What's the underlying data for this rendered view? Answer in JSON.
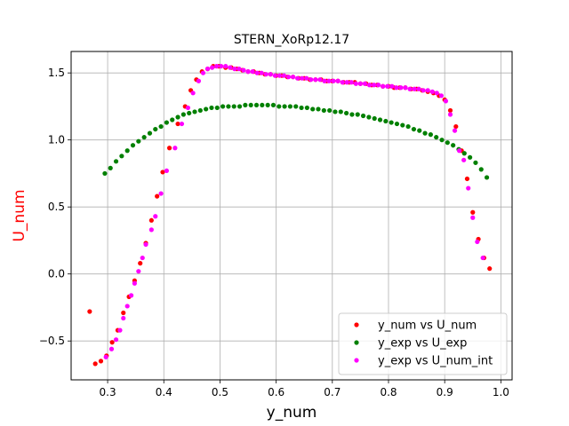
{
  "chart_data": {
    "type": "scatter",
    "title": "STERN_XoRp12.17",
    "xlabel": "y_num",
    "ylabel": "U_num",
    "xlabel_color": "#000000",
    "ylabel_color": "#ff0000",
    "xlim": [
      0.235,
      1.02
    ],
    "ylim": [
      -0.79,
      1.66
    ],
    "xticks": [
      0.3,
      0.4,
      0.5,
      0.6,
      0.7,
      0.8,
      0.9,
      1.0
    ],
    "xtick_labels": [
      "0.3",
      "0.4",
      "0.5",
      "0.6",
      "0.7",
      "0.8",
      "0.9",
      "1.0"
    ],
    "yticks": [
      -0.5,
      0.0,
      0.5,
      1.0,
      1.5
    ],
    "ytick_labels": [
      "−0.5",
      "0.0",
      "0.5",
      "1.0",
      "1.5"
    ],
    "grid": true,
    "legend_position": "lower-right",
    "series": [
      {
        "name": "y_num vs U_num",
        "color": "#ff0000",
        "points": [
          [
            0.268,
            -0.28
          ],
          [
            0.278,
            -0.67
          ],
          [
            0.288,
            -0.65
          ],
          [
            0.298,
            -0.61
          ],
          [
            0.308,
            -0.51
          ],
          [
            0.318,
            -0.42
          ],
          [
            0.328,
            -0.29
          ],
          [
            0.338,
            -0.17
          ],
          [
            0.348,
            -0.05
          ],
          [
            0.358,
            0.08
          ],
          [
            0.368,
            0.23
          ],
          [
            0.378,
            0.4
          ],
          [
            0.388,
            0.58
          ],
          [
            0.398,
            0.76
          ],
          [
            0.41,
            0.94
          ],
          [
            0.425,
            1.12
          ],
          [
            0.438,
            1.25
          ],
          [
            0.448,
            1.37
          ],
          [
            0.458,
            1.45
          ],
          [
            0.468,
            1.51
          ],
          [
            0.478,
            1.53
          ],
          [
            0.488,
            1.55
          ],
          [
            0.498,
            1.55
          ],
          [
            0.51,
            1.54
          ],
          [
            0.52,
            1.54
          ],
          [
            0.53,
            1.53
          ],
          [
            0.54,
            1.52
          ],
          [
            0.55,
            1.51
          ],
          [
            0.56,
            1.51
          ],
          [
            0.57,
            1.5
          ],
          [
            0.58,
            1.49
          ],
          [
            0.59,
            1.49
          ],
          [
            0.6,
            1.48
          ],
          [
            0.61,
            1.48
          ],
          [
            0.62,
            1.47
          ],
          [
            0.63,
            1.47
          ],
          [
            0.64,
            1.46
          ],
          [
            0.65,
            1.46
          ],
          [
            0.66,
            1.45
          ],
          [
            0.67,
            1.45
          ],
          [
            0.68,
            1.45
          ],
          [
            0.69,
            1.44
          ],
          [
            0.7,
            1.44
          ],
          [
            0.71,
            1.44
          ],
          [
            0.72,
            1.43
          ],
          [
            0.73,
            1.43
          ],
          [
            0.74,
            1.43
          ],
          [
            0.75,
            1.42
          ],
          [
            0.76,
            1.42
          ],
          [
            0.77,
            1.41
          ],
          [
            0.78,
            1.41
          ],
          [
            0.79,
            1.4
          ],
          [
            0.8,
            1.4
          ],
          [
            0.81,
            1.39
          ],
          [
            0.82,
            1.39
          ],
          [
            0.83,
            1.39
          ],
          [
            0.84,
            1.38
          ],
          [
            0.85,
            1.38
          ],
          [
            0.86,
            1.37
          ],
          [
            0.87,
            1.36
          ],
          [
            0.88,
            1.35
          ],
          [
            0.89,
            1.33
          ],
          [
            0.9,
            1.3
          ],
          [
            0.91,
            1.22
          ],
          [
            0.92,
            1.1
          ],
          [
            0.93,
            0.92
          ],
          [
            0.94,
            0.71
          ],
          [
            0.95,
            0.46
          ],
          [
            0.96,
            0.26
          ],
          [
            0.97,
            0.12
          ],
          [
            0.98,
            0.04
          ]
        ]
      },
      {
        "name": "y_exp vs U_exp",
        "color": "#008000",
        "points": [
          [
            0.295,
            0.75
          ],
          [
            0.305,
            0.79
          ],
          [
            0.315,
            0.84
          ],
          [
            0.325,
            0.88
          ],
          [
            0.335,
            0.92
          ],
          [
            0.345,
            0.96
          ],
          [
            0.355,
            0.99
          ],
          [
            0.365,
            1.02
          ],
          [
            0.375,
            1.05
          ],
          [
            0.385,
            1.08
          ],
          [
            0.395,
            1.1
          ],
          [
            0.405,
            1.13
          ],
          [
            0.415,
            1.15
          ],
          [
            0.425,
            1.17
          ],
          [
            0.435,
            1.19
          ],
          [
            0.445,
            1.2
          ],
          [
            0.455,
            1.21
          ],
          [
            0.465,
            1.22
          ],
          [
            0.475,
            1.23
          ],
          [
            0.485,
            1.24
          ],
          [
            0.495,
            1.24
          ],
          [
            0.505,
            1.25
          ],
          [
            0.515,
            1.25
          ],
          [
            0.525,
            1.25
          ],
          [
            0.535,
            1.25
          ],
          [
            0.545,
            1.26
          ],
          [
            0.555,
            1.26
          ],
          [
            0.565,
            1.26
          ],
          [
            0.575,
            1.26
          ],
          [
            0.585,
            1.26
          ],
          [
            0.595,
            1.26
          ],
          [
            0.605,
            1.25
          ],
          [
            0.615,
            1.25
          ],
          [
            0.625,
            1.25
          ],
          [
            0.635,
            1.25
          ],
          [
            0.645,
            1.24
          ],
          [
            0.655,
            1.24
          ],
          [
            0.665,
            1.23
          ],
          [
            0.675,
            1.23
          ],
          [
            0.685,
            1.22
          ],
          [
            0.695,
            1.22
          ],
          [
            0.705,
            1.21
          ],
          [
            0.715,
            1.21
          ],
          [
            0.725,
            1.2
          ],
          [
            0.735,
            1.19
          ],
          [
            0.745,
            1.19
          ],
          [
            0.755,
            1.18
          ],
          [
            0.765,
            1.17
          ],
          [
            0.775,
            1.16
          ],
          [
            0.785,
            1.15
          ],
          [
            0.795,
            1.14
          ],
          [
            0.805,
            1.13
          ],
          [
            0.815,
            1.12
          ],
          [
            0.825,
            1.11
          ],
          [
            0.835,
            1.1
          ],
          [
            0.845,
            1.08
          ],
          [
            0.855,
            1.07
          ],
          [
            0.865,
            1.05
          ],
          [
            0.875,
            1.04
          ],
          [
            0.885,
            1.02
          ],
          [
            0.895,
            1.0
          ],
          [
            0.905,
            0.98
          ],
          [
            0.915,
            0.96
          ],
          [
            0.925,
            0.93
          ],
          [
            0.935,
            0.9
          ],
          [
            0.945,
            0.87
          ],
          [
            0.955,
            0.83
          ],
          [
            0.965,
            0.78
          ],
          [
            0.975,
            0.72
          ]
        ]
      },
      {
        "name": "y_exp vs U_num_int",
        "color": "#ff00ff",
        "points": [
          [
            0.297,
            -0.62
          ],
          [
            0.307,
            -0.56
          ],
          [
            0.315,
            -0.49
          ],
          [
            0.322,
            -0.42
          ],
          [
            0.328,
            -0.33
          ],
          [
            0.335,
            -0.24
          ],
          [
            0.342,
            -0.16
          ],
          [
            0.348,
            -0.07
          ],
          [
            0.355,
            0.02
          ],
          [
            0.362,
            0.12
          ],
          [
            0.368,
            0.22
          ],
          [
            0.378,
            0.33
          ],
          [
            0.385,
            0.43
          ],
          [
            0.395,
            0.6
          ],
          [
            0.405,
            0.77
          ],
          [
            0.42,
            0.94
          ],
          [
            0.432,
            1.12
          ],
          [
            0.443,
            1.24
          ],
          [
            0.452,
            1.35
          ],
          [
            0.462,
            1.44
          ],
          [
            0.47,
            1.5
          ],
          [
            0.478,
            1.53
          ],
          [
            0.486,
            1.54
          ],
          [
            0.494,
            1.55
          ],
          [
            0.502,
            1.55
          ],
          [
            0.51,
            1.55
          ],
          [
            0.518,
            1.54
          ],
          [
            0.526,
            1.53
          ],
          [
            0.534,
            1.53
          ],
          [
            0.542,
            1.52
          ],
          [
            0.55,
            1.51
          ],
          [
            0.558,
            1.51
          ],
          [
            0.566,
            1.5
          ],
          [
            0.574,
            1.5
          ],
          [
            0.582,
            1.49
          ],
          [
            0.59,
            1.49
          ],
          [
            0.598,
            1.48
          ],
          [
            0.606,
            1.48
          ],
          [
            0.614,
            1.48
          ],
          [
            0.622,
            1.47
          ],
          [
            0.63,
            1.47
          ],
          [
            0.638,
            1.46
          ],
          [
            0.646,
            1.46
          ],
          [
            0.654,
            1.46
          ],
          [
            0.662,
            1.45
          ],
          [
            0.67,
            1.45
          ],
          [
            0.678,
            1.45
          ],
          [
            0.686,
            1.44
          ],
          [
            0.694,
            1.44
          ],
          [
            0.702,
            1.44
          ],
          [
            0.71,
            1.44
          ],
          [
            0.718,
            1.43
          ],
          [
            0.726,
            1.43
          ],
          [
            0.734,
            1.43
          ],
          [
            0.742,
            1.42
          ],
          [
            0.75,
            1.42
          ],
          [
            0.758,
            1.42
          ],
          [
            0.766,
            1.41
          ],
          [
            0.774,
            1.41
          ],
          [
            0.782,
            1.41
          ],
          [
            0.79,
            1.4
          ],
          [
            0.798,
            1.4
          ],
          [
            0.806,
            1.4
          ],
          [
            0.814,
            1.39
          ],
          [
            0.822,
            1.39
          ],
          [
            0.83,
            1.39
          ],
          [
            0.838,
            1.38
          ],
          [
            0.846,
            1.38
          ],
          [
            0.854,
            1.38
          ],
          [
            0.862,
            1.37
          ],
          [
            0.87,
            1.37
          ],
          [
            0.878,
            1.36
          ],
          [
            0.886,
            1.35
          ],
          [
            0.894,
            1.33
          ],
          [
            0.902,
            1.29
          ],
          [
            0.91,
            1.19
          ],
          [
            0.918,
            1.07
          ],
          [
            0.926,
            0.92
          ],
          [
            0.934,
            0.85
          ],
          [
            0.942,
            0.64
          ],
          [
            0.95,
            0.42
          ],
          [
            0.958,
            0.24
          ],
          [
            0.968,
            0.12
          ]
        ]
      }
    ]
  }
}
